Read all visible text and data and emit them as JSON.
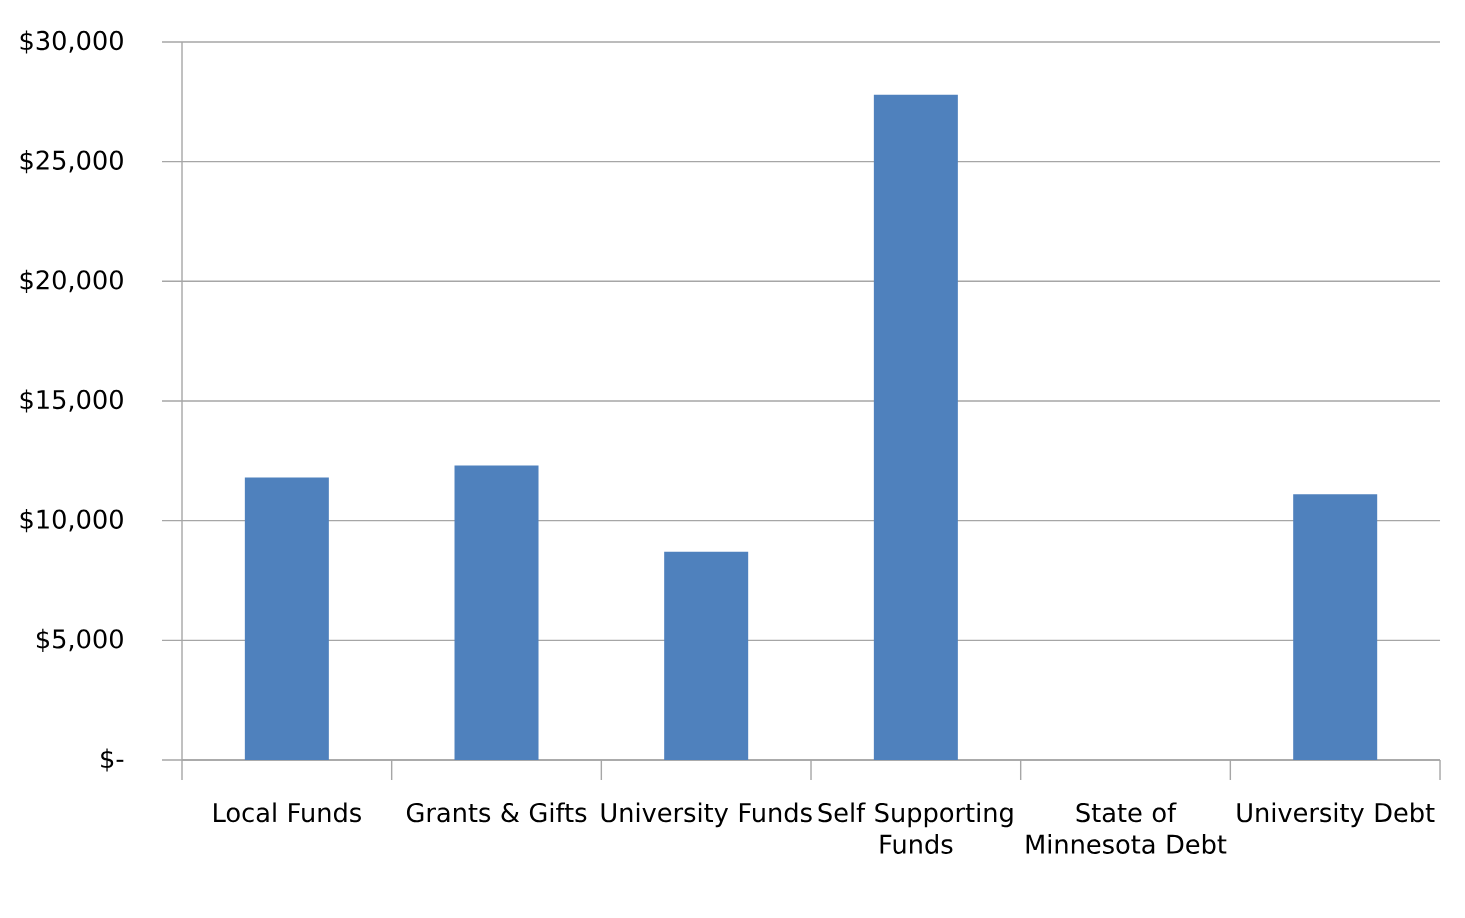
{
  "chart_data": {
    "type": "bar",
    "categories": [
      "Local Funds",
      "Grants & Gifts",
      "University Funds",
      "Self Supporting Funds",
      "State of Minnesota Debt",
      "University Debt"
    ],
    "values": [
      11800,
      12300,
      8700,
      27800,
      0,
      11100
    ],
    "color": "#4f81bd",
    "ylim": [
      0,
      30000
    ],
    "yticks": [
      {
        "value": 0,
        "label": "$-"
      },
      {
        "value": 5000,
        "label": "$5,000"
      },
      {
        "value": 10000,
        "label": "$10,000"
      },
      {
        "value": 15000,
        "label": "$15,000"
      },
      {
        "value": 20000,
        "label": "$20,000"
      },
      {
        "value": 25000,
        "label": "$25,000"
      },
      {
        "value": 30000,
        "label": "$30,000"
      }
    ],
    "grid": "y"
  }
}
